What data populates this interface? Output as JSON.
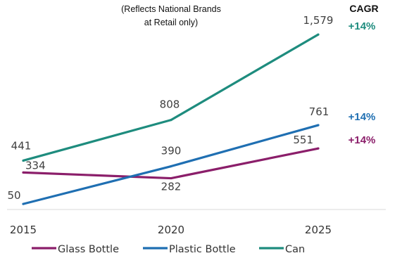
{
  "chart_data": {
    "type": "line",
    "title": "",
    "subtitle_lines": [
      "(Reflects National Brands",
      "at Retail only)"
    ],
    "xlabel": "",
    "ylabel": "",
    "categories": [
      "2015",
      "2020",
      "2025"
    ],
    "ylim": [
      0,
      1700
    ],
    "grid": false,
    "legend_position": "bottom",
    "cagr_heading": "CAGR",
    "series": [
      {
        "name": "Glass Bottle",
        "values": [
          334,
          282,
          551
        ],
        "value_labels": [
          "334",
          "282",
          "551"
        ],
        "cagr": "+14%",
        "color": "#8B1E6A"
      },
      {
        "name": "Plastic Bottle",
        "values": [
          50,
          390,
          761
        ],
        "value_labels": [
          "50",
          "390",
          "761"
        ],
        "cagr": "+14%",
        "color": "#1F6FB2"
      },
      {
        "name": "Can",
        "values": [
          441,
          808,
          1579
        ],
        "value_labels": [
          "441",
          "808",
          "1,579"
        ],
        "cagr": "+14%",
        "color": "#1E8C7E"
      }
    ]
  }
}
